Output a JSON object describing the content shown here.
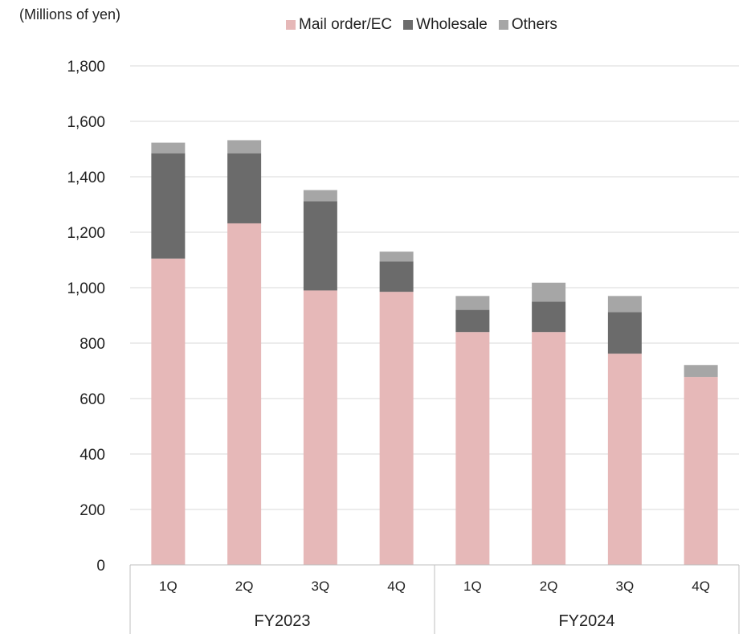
{
  "chart_data": {
    "type": "bar",
    "stacked": true,
    "unit_label": "(Millions of yen)",
    "categories": [
      "1Q",
      "2Q",
      "3Q",
      "4Q",
      "1Q",
      "2Q",
      "3Q",
      "4Q"
    ],
    "groups": [
      {
        "label": "FY2023",
        "count": 4
      },
      {
        "label": "FY2024",
        "count": 4
      }
    ],
    "series": [
      {
        "name": "Mail order/EC",
        "color": "#e6b8b8",
        "values": [
          1105,
          1232,
          990,
          985,
          840,
          840,
          762,
          678
        ]
      },
      {
        "name": "Wholesale",
        "color": "#6b6b6b",
        "values": [
          380,
          253,
          322,
          110,
          80,
          110,
          150,
          0
        ]
      },
      {
        "name": "Others",
        "color": "#a6a6a6",
        "values": [
          38,
          47,
          40,
          35,
          50,
          68,
          58,
          43
        ]
      }
    ],
    "ylim": [
      0,
      1800
    ],
    "yticks": [
      0,
      200,
      400,
      600,
      800,
      1000,
      1200,
      1400,
      1600,
      1800
    ],
    "ytick_labels": [
      "0",
      "200",
      "400",
      "600",
      "800",
      "1,000",
      "1,200",
      "1,400",
      "1,600",
      "1,800"
    ],
    "grid": true,
    "legend_position": "top-center"
  }
}
